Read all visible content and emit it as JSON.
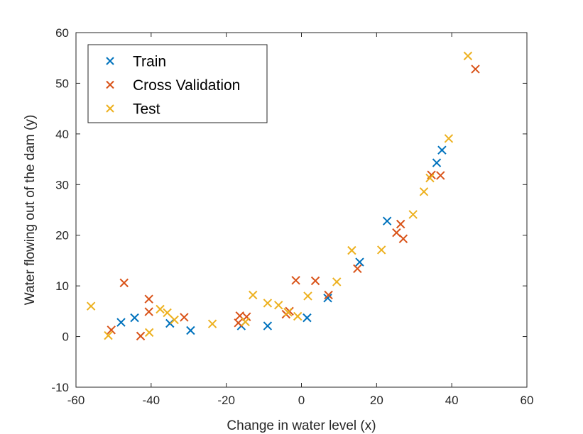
{
  "chart_data": {
    "type": "scatter",
    "title": "",
    "xlabel": "Change in water level (x)",
    "ylabel": "Water flowing out of the dam (y)",
    "xlim": [
      -60,
      60
    ],
    "ylim": [
      -10,
      60
    ],
    "xticks": [
      -60,
      -40,
      -20,
      0,
      20,
      40,
      60
    ],
    "yticks": [
      -10,
      0,
      10,
      20,
      30,
      40,
      50,
      60
    ],
    "grid": false,
    "legend_position": "top-left",
    "marker": "x",
    "series": [
      {
        "name": "Train",
        "color": "#0072BD",
        "points": [
          [
            -48,
            2.8
          ],
          [
            -44.4,
            3.7
          ],
          [
            -35,
            2.6
          ],
          [
            -29.5,
            1.2
          ],
          [
            -16,
            2.1
          ],
          [
            -9,
            2.1
          ],
          [
            1.5,
            3.7
          ],
          [
            7,
            7.6
          ],
          [
            15.5,
            14.7
          ],
          [
            22.8,
            22.8
          ],
          [
            36,
            34.3
          ],
          [
            37.4,
            36.8
          ]
        ]
      },
      {
        "name": "Cross Validation",
        "color": "#D95319",
        "points": [
          [
            -50.6,
            1.3
          ],
          [
            -47.2,
            10.6
          ],
          [
            -42.8,
            0.1
          ],
          [
            -40.6,
            7.4
          ],
          [
            -40.6,
            4.9
          ],
          [
            -31.2,
            3.8
          ],
          [
            -16.8,
            2.7
          ],
          [
            -16.4,
            4.1
          ],
          [
            -14.6,
            3.9
          ],
          [
            -4.1,
            4.4
          ],
          [
            -3.2,
            5.0
          ],
          [
            -1.5,
            11.1
          ],
          [
            3.7,
            11.0
          ],
          [
            7.2,
            8.2
          ],
          [
            14.9,
            13.4
          ],
          [
            25.3,
            20.5
          ],
          [
            26.4,
            22.2
          ],
          [
            27.1,
            19.3
          ],
          [
            34.6,
            31.9
          ],
          [
            37,
            31.8
          ],
          [
            46.3,
            52.8
          ]
        ]
      },
      {
        "name": "Test",
        "color": "#EDB120",
        "points": [
          [
            -56,
            6.0
          ],
          [
            -51.4,
            0.2
          ],
          [
            -40.5,
            0.8
          ],
          [
            -37.6,
            5.4
          ],
          [
            -35.7,
            4.7
          ],
          [
            -33.8,
            3.3
          ],
          [
            -23.7,
            2.5
          ],
          [
            -14.9,
            2.9
          ],
          [
            -12.9,
            8.2
          ],
          [
            -9,
            6.6
          ],
          [
            -6.1,
            6.2
          ],
          [
            -3.6,
            4.8
          ],
          [
            -1,
            4.0
          ],
          [
            1.7,
            8.0
          ],
          [
            9.4,
            10.8
          ],
          [
            13.4,
            17.0
          ],
          [
            21.3,
            17.1
          ],
          [
            29.7,
            24.1
          ],
          [
            32.6,
            28.6
          ],
          [
            34.2,
            31.3
          ],
          [
            39.2,
            39.1
          ],
          [
            44.3,
            55.4
          ]
        ]
      }
    ]
  }
}
